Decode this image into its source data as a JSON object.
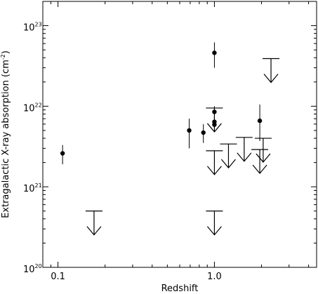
{
  "chart_data": {
    "type": "scatter",
    "title": "",
    "xlabel": "Redshift",
    "ylabel": "Extragalactic X-ray absorption (cm^-2)",
    "xscale": "log",
    "yscale": "log",
    "xlim": [
      0.08,
      4.5
    ],
    "ylim": [
      1e+20,
      2e+23
    ],
    "x_ticklabels": [
      {
        "value": 0.1,
        "label": "0.1"
      },
      {
        "value": 1.0,
        "label": "1.0"
      }
    ],
    "y_ticklabels": [
      {
        "value": 1e+20,
        "base": "10",
        "exp": "20"
      },
      {
        "value": 1e+21,
        "base": "10",
        "exp": "21"
      },
      {
        "value": 1e+22,
        "base": "10",
        "exp": "22"
      },
      {
        "value": 1e+23,
        "base": "10",
        "exp": "23"
      }
    ],
    "detections": [
      {
        "x": 0.107,
        "y": 2.6e+21,
        "ylo": 1.9e+21,
        "yhi": 3.3e+21
      },
      {
        "x": 0.69,
        "y": 5e+21,
        "ylo": 3e+21,
        "yhi": 7e+21
      },
      {
        "x": 0.85,
        "y": 4.7e+21,
        "ylo": 3.5e+21,
        "yhi": 6e+21
      },
      {
        "x": 1.0,
        "y": 4.6e+22,
        "ylo": 3e+22,
        "yhi": 6.2e+22
      },
      {
        "x": 1.0,
        "y": 8.5e+21,
        "ylo": 7e+21,
        "yhi": 1e+22
      },
      {
        "x": 1.0,
        "y": 6.4e+21,
        "ylo": 5.6e+21,
        "yhi": 7.4e+21
      },
      {
        "x": 1.0,
        "y": 5.9e+21,
        "ylo": 5.3e+21,
        "yhi": 6.6e+21
      },
      {
        "x": 1.95,
        "y": 6.6e+21,
        "ylo": 3.7e+21,
        "yhi": 1.05e+22
      }
    ],
    "upper_limits": [
      {
        "x": 0.17,
        "y": 5e+20
      },
      {
        "x": 1.0,
        "y": 5e+20
      },
      {
        "x": 1.0,
        "y": 9.5e+21
      },
      {
        "x": 1.0,
        "y": 2.8e+21
      },
      {
        "x": 1.23,
        "y": 3.4e+21
      },
      {
        "x": 1.55,
        "y": 4.1e+21
      },
      {
        "x": 1.95,
        "y": 2.9e+21
      },
      {
        "x": 2.05,
        "y": 4e+21
      },
      {
        "x": 2.3,
        "y": 3.9e+22
      }
    ]
  }
}
